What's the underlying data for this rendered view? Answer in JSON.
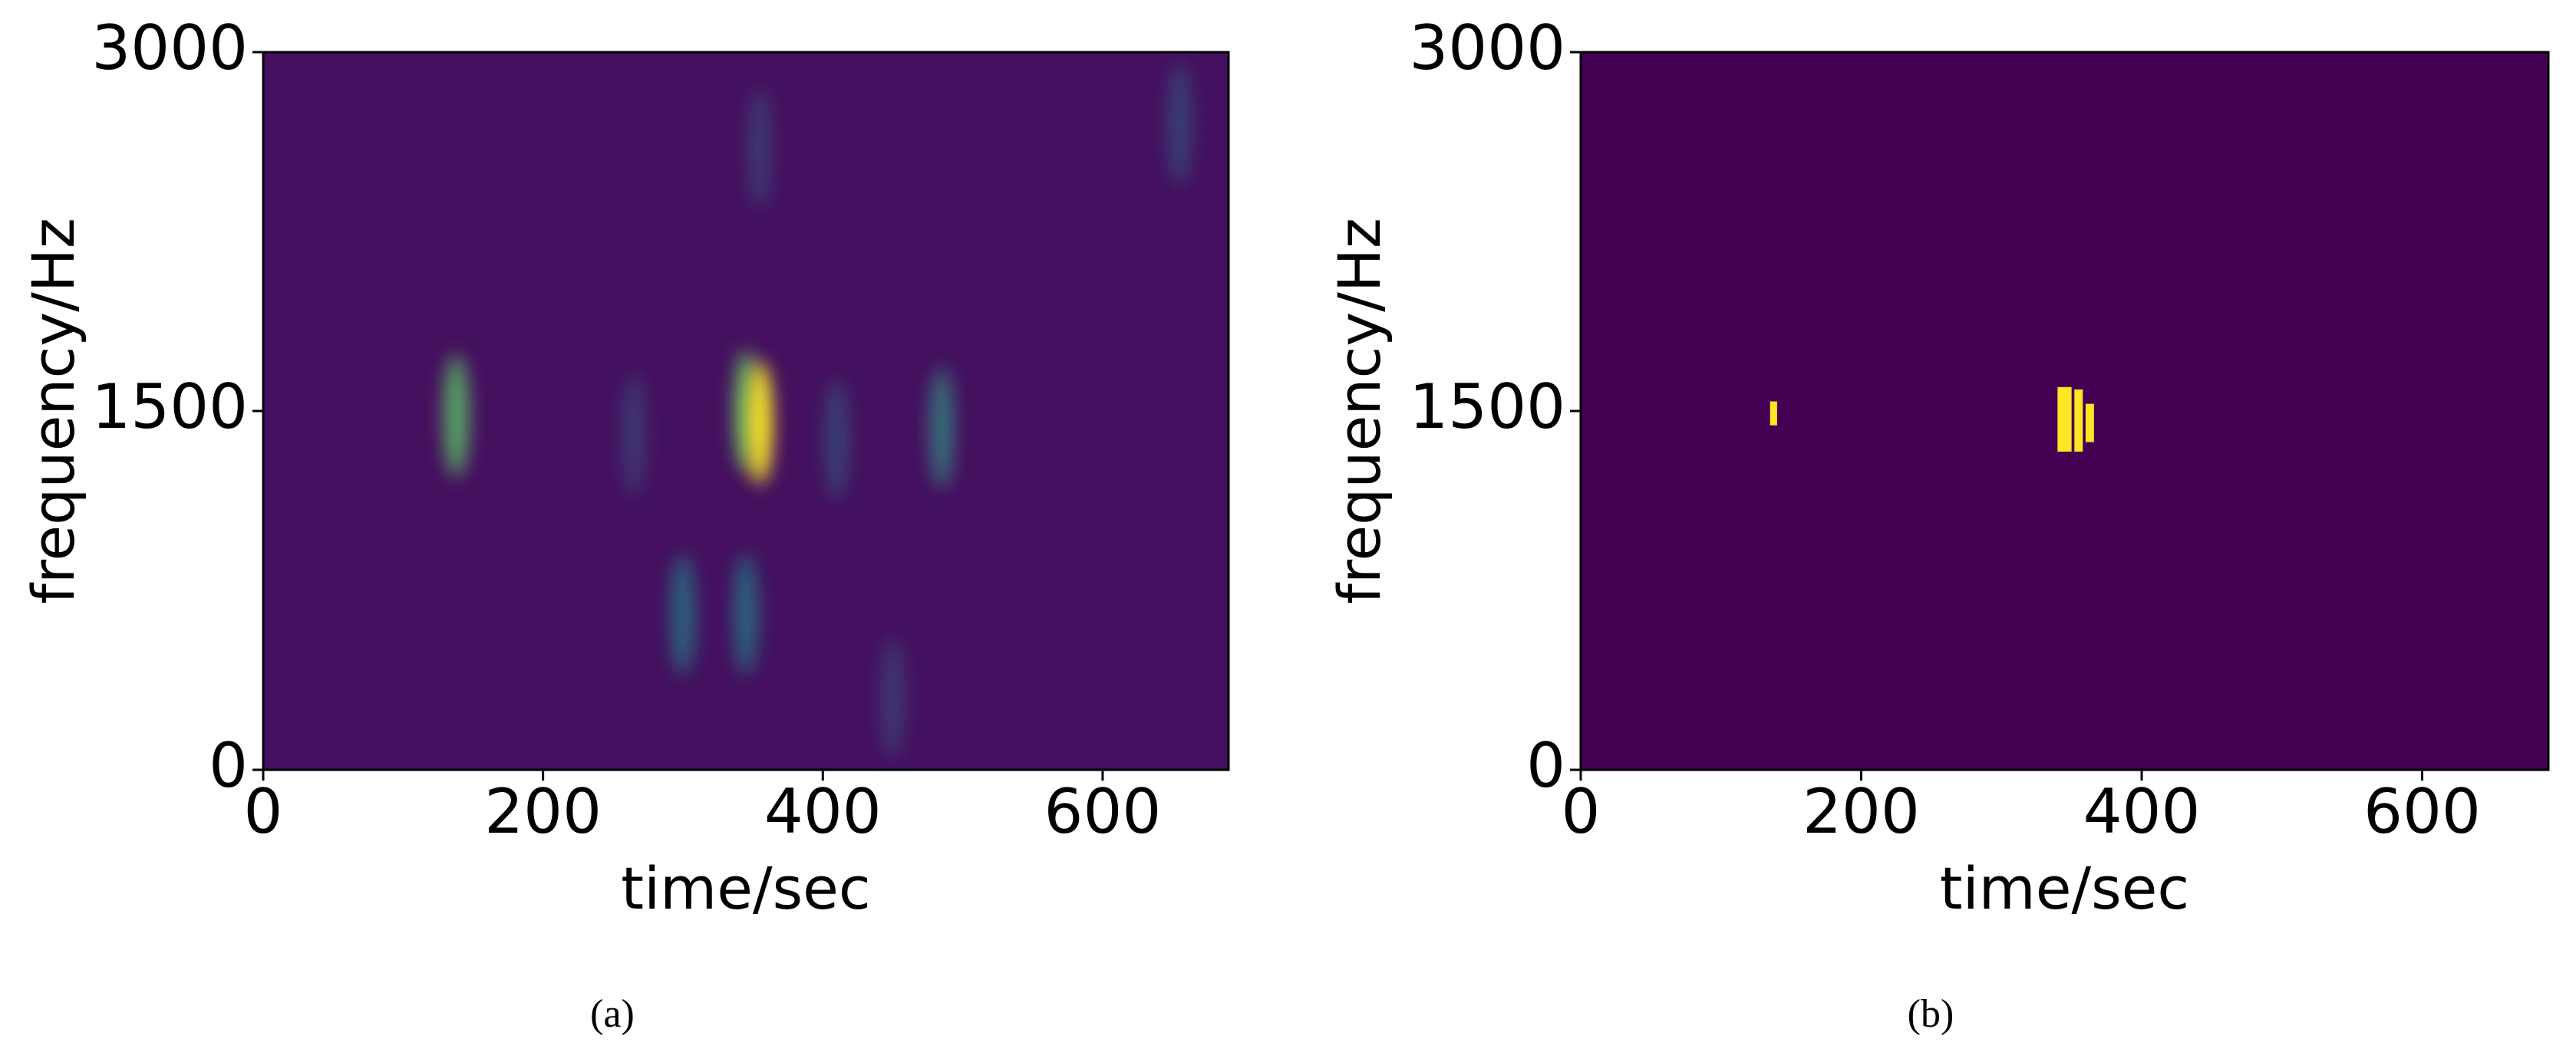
{
  "chart_data": [
    {
      "type": "heatmap",
      "caption": "(a)",
      "xlabel": "time/sec",
      "ylabel": "frequency/Hz",
      "xlim": [
        0,
        690
      ],
      "ylim": [
        0,
        3000
      ],
      "xticks": [
        0,
        200,
        400,
        600
      ],
      "yticks": [
        0,
        1500,
        3000
      ],
      "background": "#440f5e",
      "x": [
        138,
        265,
        300,
        345,
        345,
        355,
        355,
        410,
        450,
        485,
        655
      ],
      "y": [
        1480,
        1400,
        650,
        1500,
        650,
        1450,
        2600,
        1380,
        300,
        1430,
        2700
      ],
      "values": [
        0.75,
        0.3,
        0.5,
        0.75,
        0.5,
        1.0,
        0.3,
        0.35,
        0.3,
        0.55,
        0.35
      ]
    },
    {
      "type": "mask",
      "caption": "(b)",
      "xlabel": "time/sec",
      "ylabel": "frequency/Hz",
      "xlim": [
        0,
        690
      ],
      "ylim": [
        0,
        3000
      ],
      "xticks": [
        0,
        200,
        400,
        600
      ],
      "yticks": [
        0,
        1500,
        3000
      ],
      "background": "#440154",
      "color": "#fde725",
      "x": [
        135,
        340,
        352,
        360
      ],
      "x_end": [
        140,
        350,
        358,
        366
      ],
      "y_low": [
        1440,
        1330,
        1330,
        1370
      ],
      "y_high": [
        1540,
        1600,
        1590,
        1530
      ]
    }
  ]
}
